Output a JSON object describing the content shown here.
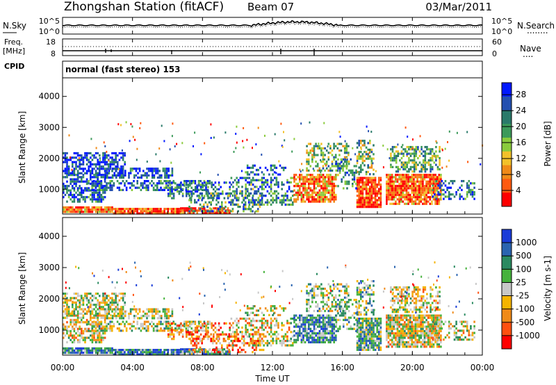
{
  "header": {
    "station": "Zhongshan Station (fitACF)",
    "beam": "Beam 07",
    "date": "03/Mar/2011"
  },
  "noise_panel": {
    "left_label": "N.Sky",
    "right_label": "N.Search",
    "right_marker": "........",
    "left_ticks": [
      "10^5",
      "10^0"
    ],
    "right_ticks": [
      "10^5",
      "10^0"
    ]
  },
  "freq_panel": {
    "left_label_1": "Freq.",
    "left_label_2": "[MHz]",
    "right_label": "Nave",
    "right_marker": "....",
    "left_ticks": [
      "18",
      "8"
    ],
    "right_ticks": [
      "60",
      "0"
    ],
    "cpid_label": "CPID"
  },
  "cpid_text": "normal (fast stereo) 153",
  "colors": {
    "power_scale": [
      "#0018ff",
      "#2450b0",
      "#2a7a6a",
      "#3c9a5a",
      "#8acb3c",
      "#f2c12a",
      "#f08a18",
      "#ff5a10",
      "#ff0000"
    ],
    "velocity_scale": [
      "#1a3cd8",
      "#2a64b0",
      "#2a8a60",
      "#46b23c",
      "#c8c8c8",
      "#f5b400",
      "#f08a18",
      "#ff5010",
      "#ff0000"
    ]
  },
  "chart_data": [
    {
      "type": "heatmap",
      "name": "power-panel",
      "xlabel": "",
      "ylabel": "Slant Range [km]",
      "ylim": [
        200,
        4600
      ],
      "y_ticks": [
        "1000",
        "2000",
        "3000",
        "4000"
      ],
      "colorbar": {
        "label": "Power [dB]",
        "ticks": [
          "4",
          "8",
          "12",
          "16",
          "20",
          "24",
          "28"
        ],
        "range": [
          0,
          31
        ]
      }
    },
    {
      "type": "heatmap",
      "name": "velocity-panel",
      "xlabel": "Time UT",
      "ylabel": "Slant Range [km]",
      "ylim": [
        200,
        4600
      ],
      "y_ticks": [
        "1000",
        "2000",
        "3000",
        "4000"
      ],
      "x_ticks": [
        "00:00",
        "04:00",
        "08:00",
        "12:00",
        "16:00",
        "20:00",
        "00:00"
      ],
      "colorbar": {
        "label": "Velocity [m s-1]",
        "ticks": [
          "1000",
          "500",
          "100",
          "25",
          "-25",
          "-100",
          "-500",
          "-1000"
        ]
      }
    }
  ]
}
